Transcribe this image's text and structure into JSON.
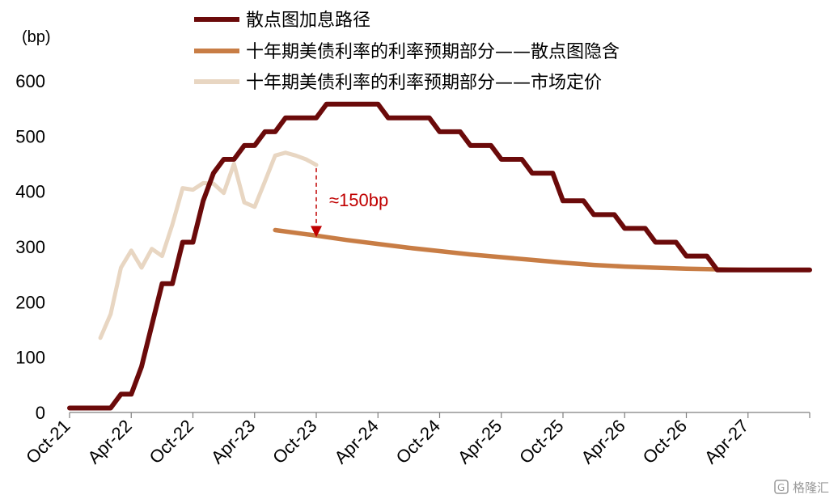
{
  "chart_data": {
    "type": "line",
    "ylabel": "(bp)",
    "ylim": [
      0,
      600
    ],
    "yticks": [
      0,
      100,
      200,
      300,
      400,
      500,
      600
    ],
    "x_range": [
      "Oct-21",
      "Apr-27+6"
    ],
    "x_tick_labels": [
      "Oct-21",
      "Apr-22",
      "Oct-22",
      "Apr-23",
      "Oct-23",
      "Apr-24",
      "Oct-24",
      "Apr-25",
      "Oct-25",
      "Apr-26",
      "Oct-26",
      "Apr-27"
    ],
    "legend_position": "top-center",
    "series": [
      {
        "name": "散点图加息路径",
        "color": "#6b0a0a",
        "points": [
          [
            "Oct-21",
            8
          ],
          [
            "Feb-22",
            8
          ],
          [
            "Mar-22",
            33
          ],
          [
            "Apr-22",
            33
          ],
          [
            "May-22",
            83
          ],
          [
            "Jul-22",
            233
          ],
          [
            "Aug-22",
            233
          ],
          [
            "Sep-22",
            308
          ],
          [
            "Oct-22",
            308
          ],
          [
            "Nov-22",
            383
          ],
          [
            "Dec-22",
            433
          ],
          [
            "Jan-23",
            458
          ],
          [
            "Feb-23",
            458
          ],
          [
            "Mar-23",
            483
          ],
          [
            "Apr-23",
            483
          ],
          [
            "May-23",
            508
          ],
          [
            "Jun-23",
            508
          ],
          [
            "Jul-23",
            533
          ],
          [
            "Oct-23",
            533
          ],
          [
            "Nov-23",
            558
          ],
          [
            "Apr-24",
            558
          ],
          [
            "May-24",
            533
          ],
          [
            "Sep-24",
            533
          ],
          [
            "Oct-24",
            508
          ],
          [
            "Dec-24",
            508
          ],
          [
            "Jan-25",
            483
          ],
          [
            "Mar-25",
            483
          ],
          [
            "Apr-25",
            458
          ],
          [
            "Jun-25",
            458
          ],
          [
            "Jul-25",
            433
          ],
          [
            "Sep-25",
            433
          ],
          [
            "Oct-25",
            383
          ],
          [
            "Dec-25",
            383
          ],
          [
            "Jan-26",
            358
          ],
          [
            "Mar-26",
            358
          ],
          [
            "Apr-26",
            333
          ],
          [
            "Jun-26",
            333
          ],
          [
            "Jul-26",
            308
          ],
          [
            "Sep-26",
            308
          ],
          [
            "Oct-26",
            283
          ],
          [
            "Dec-26",
            283
          ],
          [
            "Jan-27",
            258
          ],
          [
            "Jun-27",
            258
          ],
          [
            "Oct-27",
            258
          ]
        ]
      },
      {
        "name": "十年期美债利率的利率预期部分——散点图隐含",
        "color": "#c87d45",
        "points": [
          [
            "Jun-23",
            330
          ],
          [
            "Oct-23",
            320
          ],
          [
            "Jan-24",
            312
          ],
          [
            "Apr-24",
            305
          ],
          [
            "Jul-24",
            298
          ],
          [
            "Oct-24",
            292
          ],
          [
            "Jan-25",
            286
          ],
          [
            "Apr-25",
            281
          ],
          [
            "Jul-25",
            276
          ],
          [
            "Oct-25",
            271
          ],
          [
            "Jan-26",
            267
          ],
          [
            "Apr-26",
            264
          ],
          [
            "Jul-26",
            262
          ],
          [
            "Oct-26",
            260
          ],
          [
            "Jan-27",
            259
          ],
          [
            "Apr-27",
            258
          ],
          [
            "Oct-27",
            258
          ]
        ]
      },
      {
        "name": "十年期美债利率的利率预期部分——市场定价",
        "color": "#e8d6c2",
        "points": [
          [
            "Jan-22",
            135
          ],
          [
            "Feb-22",
            178
          ],
          [
            "Mar-22",
            262
          ],
          [
            "Apr-22",
            293
          ],
          [
            "May-22",
            262
          ],
          [
            "Jun-22",
            296
          ],
          [
            "Jul-22",
            283
          ],
          [
            "Aug-22",
            340
          ],
          [
            "Sep-22",
            406
          ],
          [
            "Oct-22",
            403
          ],
          [
            "Nov-22",
            415
          ],
          [
            "Dec-22",
            414
          ],
          [
            "Jan-23",
            397
          ],
          [
            "Feb-23",
            450
          ],
          [
            "Mar-23",
            380
          ],
          [
            "Apr-23",
            372
          ],
          [
            "May-23",
            418
          ],
          [
            "Jun-23",
            465
          ],
          [
            "Jul-23",
            470
          ],
          [
            "Aug-23",
            465
          ],
          [
            "Sep-23",
            458
          ],
          [
            "Oct-23",
            448
          ]
        ]
      }
    ],
    "annotations": [
      {
        "text": "≈150bp",
        "arrow_from": [
          "Oct-23",
          448
        ],
        "arrow_to": [
          "Oct-23",
          320
        ],
        "color": "#c00000"
      }
    ]
  },
  "watermark": "格隆汇"
}
